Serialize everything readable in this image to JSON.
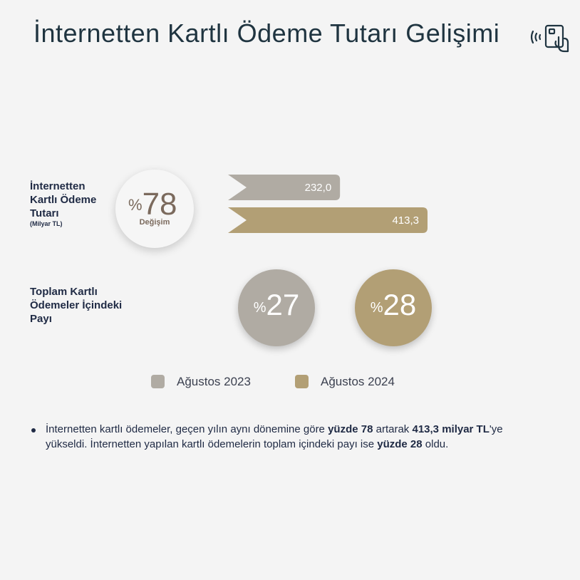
{
  "title": "İnternetten Kartlı Ödeme Tutarı Gelişimi",
  "icon": "contactless-card-icon",
  "colors": {
    "aug2023": "#b0aba3",
    "aug2024": "#b29f75"
  },
  "amount_row": {
    "label_lines": [
      "İnternetten",
      "Kartlı Ödeme",
      "Tutarı"
    ],
    "unit": "(Milyar TL)",
    "change": {
      "symbol": "%",
      "value": "78",
      "label": "Değişim"
    }
  },
  "share_row": {
    "label_lines": [
      "Toplam Kartlı",
      "Ödemeler İçindeki",
      "Payı"
    ]
  },
  "legend": [
    {
      "label": "Ağustos 2023"
    },
    {
      "label": "Ağustos 2024"
    }
  ],
  "note": {
    "segments": [
      {
        "text": "İnternetten kartlı ödemeler, geçen yılın aynı dönemine göre ",
        "bold": false
      },
      {
        "text": "yüzde 78",
        "bold": true
      },
      {
        "text": " artarak ",
        "bold": false
      },
      {
        "text": "413,3 milyar TL",
        "bold": true
      },
      {
        "text": "'ye yükseldi. İnternetten yapılan kartlı ödemelerin toplam içindeki payı ise ",
        "bold": false
      },
      {
        "text": "yüzde 28",
        "bold": true
      },
      {
        "text": " oldu.",
        "bold": false
      }
    ]
  },
  "chart_data": [
    {
      "type": "bar",
      "orientation": "horizontal",
      "categories": [
        "Ağustos 2023",
        "Ağustos 2024"
      ],
      "values": [
        232.0,
        413.3
      ],
      "value_labels": [
        "232,0",
        "413,3"
      ],
      "unit": "Milyar TL"
    },
    {
      "type": "pie",
      "categories": [
        "Ağustos 2023",
        "Ağustos 2024"
      ],
      "values": [
        27,
        28
      ],
      "value_labels": [
        "27",
        "28"
      ],
      "symbol": "%"
    }
  ]
}
